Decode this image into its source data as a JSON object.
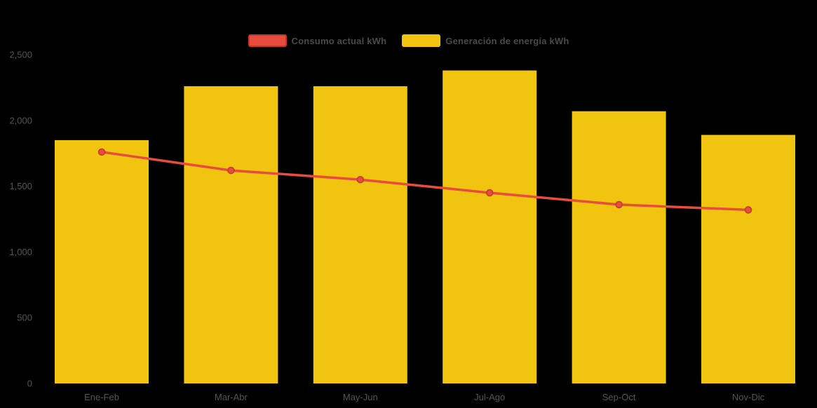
{
  "chart_data": {
    "type": "bar",
    "subtype": "combo-bar-line",
    "categories": [
      "Ene-Feb",
      "Mar-Abr",
      "May-Jun",
      "Jul-Ago",
      "Sep-Oct",
      "Nov-Dic"
    ],
    "series": [
      {
        "name": "Consumo actual kWh",
        "type": "line",
        "values": [
          1760,
          1620,
          1550,
          1450,
          1360,
          1320
        ],
        "color": "#e74c3c",
        "point_border": "#c0392b"
      },
      {
        "name": "Generación de energía kWh",
        "type": "bar",
        "values": [
          1850,
          2260,
          2260,
          2380,
          2070,
          1890
        ],
        "color": "#f1c40f"
      }
    ],
    "title": "",
    "xlabel": "",
    "ylabel": "",
    "ylim": [
      0,
      2500
    ],
    "y_tick_values": [
      0,
      500,
      1000,
      1500,
      2000,
      2500
    ],
    "y_ticks": [
      "0",
      "500",
      "1,000",
      "1,500",
      "2,000",
      "2,500"
    ],
    "legend_position": "top",
    "grid": false,
    "background": "#000000",
    "text_color": "#555555"
  }
}
